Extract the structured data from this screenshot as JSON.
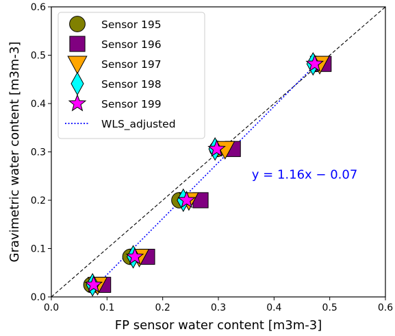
{
  "chart_data": {
    "type": "scatter",
    "xlabel": "FP sensor water content [m3m-3]",
    "ylabel": "Gravimetric water content [m3m-3]",
    "xlim": [
      0.0,
      0.6
    ],
    "ylim": [
      0.0,
      0.6
    ],
    "x_ticks": [
      "0.0",
      "0.1",
      "0.2",
      "0.3",
      "0.4",
      "0.5",
      "0.6"
    ],
    "y_ticks": [
      "0.0",
      "0.1",
      "0.2",
      "0.3",
      "0.4",
      "0.5",
      "0.6"
    ],
    "grid": false,
    "legend_position": "upper-left",
    "series": [
      {
        "name": "Sensor 195",
        "marker": "circle",
        "color": "#808000",
        "x": [
          0.072,
          0.142,
          0.23,
          0.298,
          0.475
        ],
        "y": [
          0.025,
          0.083,
          0.2,
          0.306,
          0.482
        ]
      },
      {
        "name": "Sensor 196",
        "marker": "square",
        "color": "#800080",
        "x": [
          0.093,
          0.172,
          0.268,
          0.326,
          0.489
        ],
        "y": [
          0.025,
          0.083,
          0.2,
          0.306,
          0.482
        ]
      },
      {
        "name": "Sensor 197",
        "marker": "triangle-down",
        "color": "#FFA500",
        "x": [
          0.083,
          0.158,
          0.247,
          0.312,
          0.482
        ],
        "y": [
          0.025,
          0.083,
          0.2,
          0.306,
          0.482
        ]
      },
      {
        "name": "Sensor 198",
        "marker": "diamond",
        "color": "#00FFFF",
        "x": [
          0.074,
          0.147,
          0.237,
          0.294,
          0.47
        ],
        "y": [
          0.025,
          0.083,
          0.2,
          0.306,
          0.482
        ]
      },
      {
        "name": "Sensor 199",
        "marker": "star",
        "color": "#FF00FF",
        "x": [
          0.076,
          0.15,
          0.243,
          0.297,
          0.473
        ],
        "y": [
          0.025,
          0.083,
          0.2,
          0.306,
          0.482
        ]
      }
    ],
    "lines": [
      {
        "name": "",
        "style": "dashed",
        "color": "#000000",
        "x": [
          0.0,
          0.6
        ],
        "y": [
          0.0,
          0.6
        ]
      },
      {
        "name": "WLS_adjusted",
        "style": "dotted",
        "color": "#0000ff",
        "x": [
          0.077,
          0.476
        ],
        "y": [
          0.0193,
          0.4822
        ]
      }
    ],
    "annotation": {
      "text": "y = 1.16x − 0.07",
      "x": 0.36,
      "y": 0.253,
      "color": "#0000ff"
    }
  }
}
